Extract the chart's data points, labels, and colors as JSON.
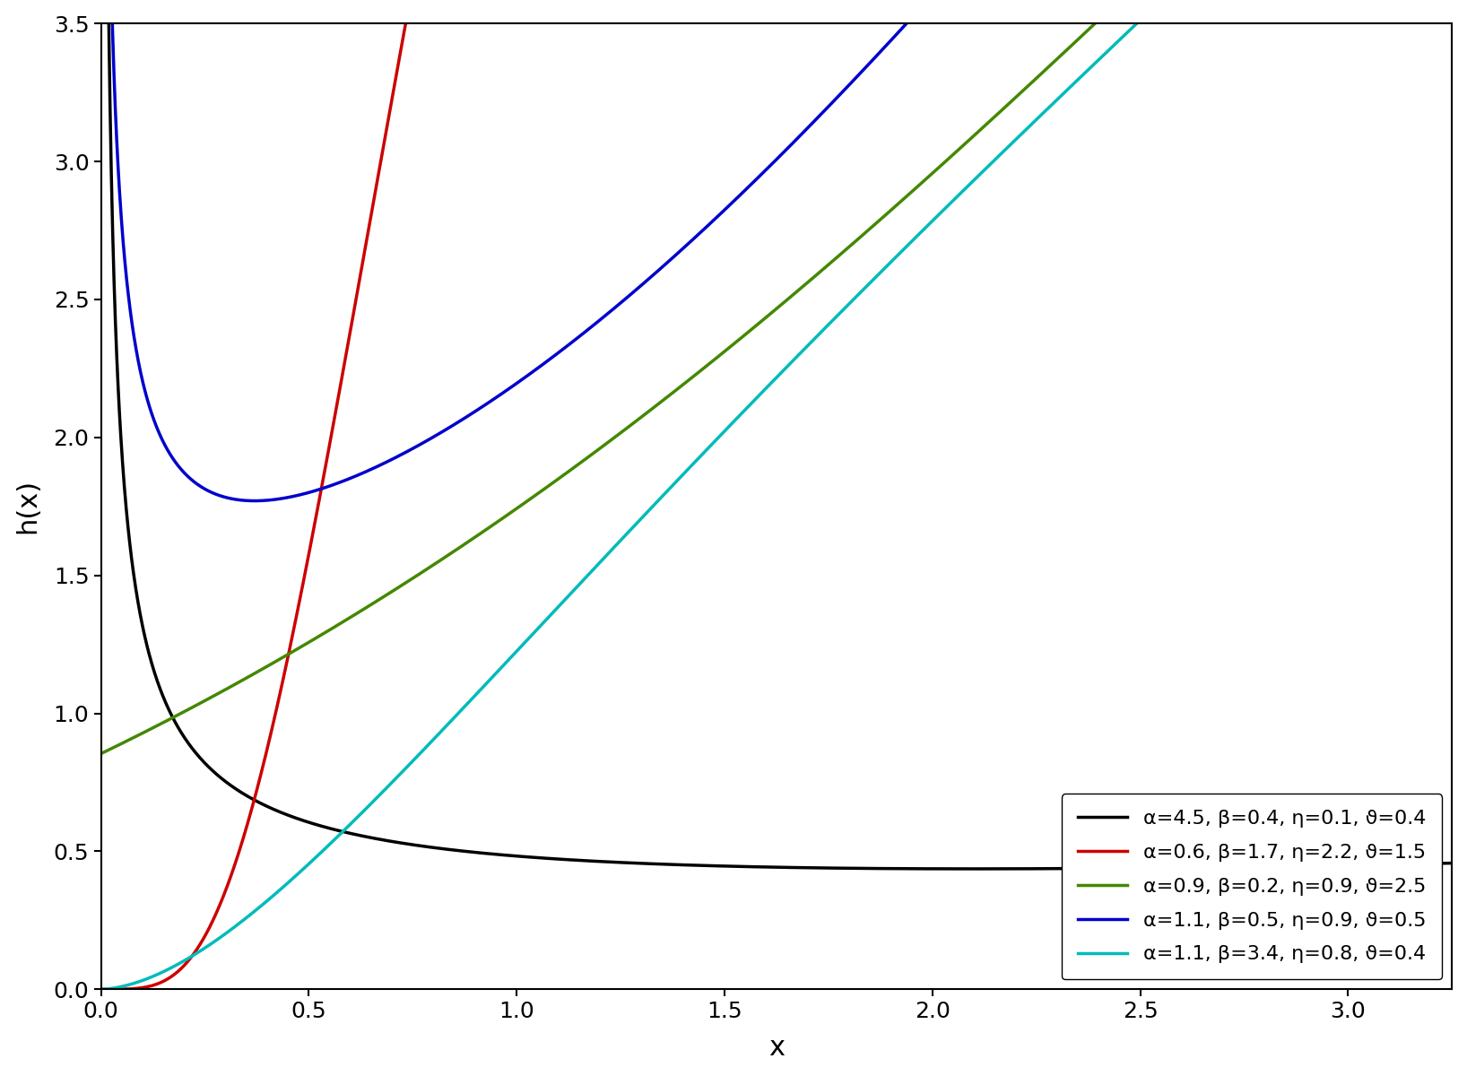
{
  "curves": [
    {
      "alpha": 4.5,
      "beta": 0.4,
      "eta": 0.1,
      "theta": 0.4,
      "color": "#000000",
      "label": "α=4.5, β=0.4, η=0.1, ϑ=0.4"
    },
    {
      "alpha": 0.6,
      "beta": 1.7,
      "eta": 2.2,
      "theta": 1.5,
      "color": "#cc0000",
      "label": "α=0.6, β=1.7, η=2.2, ϑ=1.5"
    },
    {
      "alpha": 0.9,
      "beta": 0.2,
      "eta": 0.9,
      "theta": 2.5,
      "color": "#448800",
      "label": "α=0.9, β=0.2, η=0.9, ϑ=2.5"
    },
    {
      "alpha": 1.1,
      "beta": 0.5,
      "eta": 0.9,
      "theta": 0.5,
      "color": "#0000cc",
      "label": "α=1.1, β=0.5, η=0.9, ϑ=0.5"
    },
    {
      "alpha": 1.1,
      "beta": 3.4,
      "eta": 0.8,
      "theta": 0.4,
      "color": "#00bbbb",
      "label": "α=1.1, β=3.4, η=0.8, ϑ=0.4"
    }
  ],
  "xlim": [
    0.0,
    3.25
  ],
  "ylim": [
    0.0,
    3.5
  ],
  "xlabel": "x",
  "ylabel": "h(x)",
  "xticks": [
    0.0,
    0.5,
    1.0,
    1.5,
    2.0,
    2.5,
    3.0
  ],
  "yticks": [
    0.0,
    0.5,
    1.0,
    1.5,
    2.0,
    2.5,
    3.0,
    3.5
  ],
  "linewidth": 2.5
}
